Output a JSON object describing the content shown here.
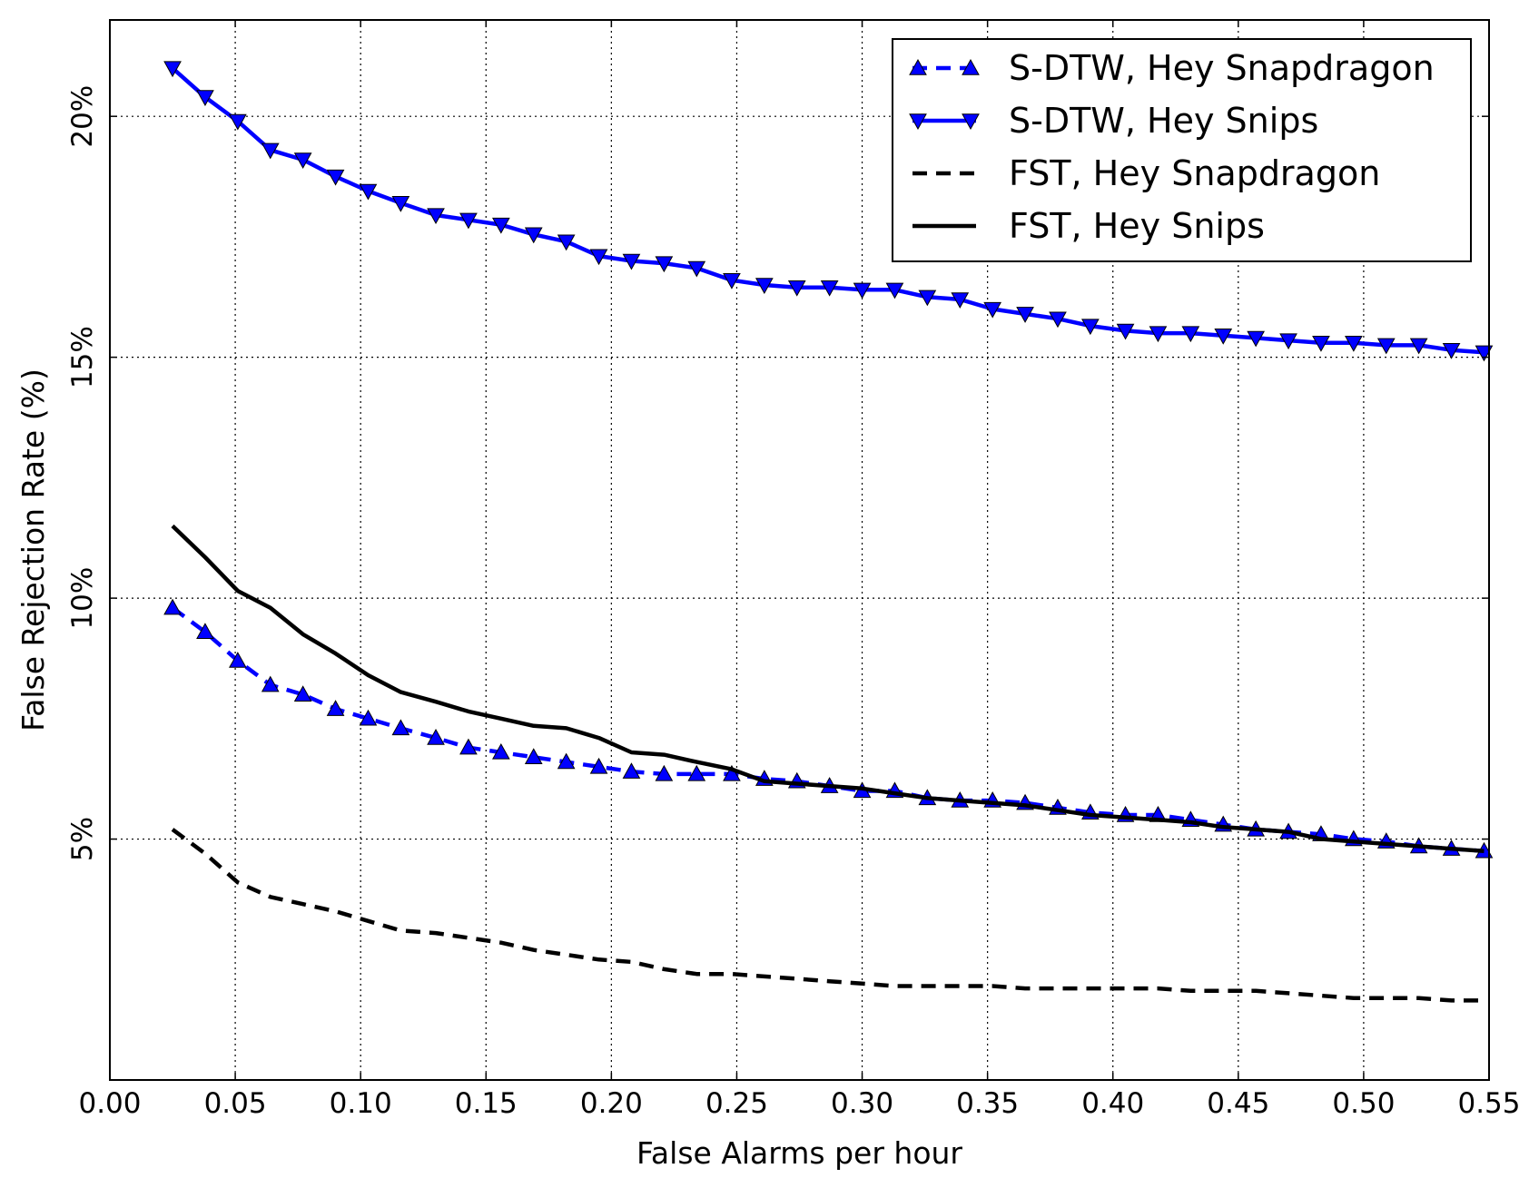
{
  "chart_data": {
    "type": "line",
    "title": "",
    "xlabel": "False Alarms per hour",
    "ylabel": "False Rejection Rate (%)",
    "xlim": [
      0.0,
      0.55
    ],
    "ylim": [
      0,
      22
    ],
    "xticks": [
      0.0,
      0.05,
      0.1,
      0.15,
      0.2,
      0.25,
      0.3,
      0.35,
      0.4,
      0.45,
      0.5,
      0.55
    ],
    "xtick_labels": [
      "0.00",
      "0.05",
      "0.10",
      "0.15",
      "0.20",
      "0.25",
      "0.30",
      "0.35",
      "0.40",
      "0.45",
      "0.50",
      "0.55"
    ],
    "yticks": [
      5,
      10,
      15,
      20
    ],
    "ytick_labels": [
      "5%",
      "10%",
      "15%",
      "20%"
    ],
    "grid": true,
    "legend_position": "top-right",
    "series": [
      {
        "name": "S-DTW, Hey Snapdragon",
        "color": "#0000ff",
        "style": "dashed",
        "marker": "triangle-up",
        "x": [
          0.025,
          0.038,
          0.051,
          0.064,
          0.077,
          0.09,
          0.103,
          0.116,
          0.13,
          0.143,
          0.156,
          0.169,
          0.182,
          0.195,
          0.208,
          0.221,
          0.234,
          0.248,
          0.261,
          0.274,
          0.287,
          0.3,
          0.313,
          0.326,
          0.339,
          0.352,
          0.365,
          0.378,
          0.391,
          0.405,
          0.418,
          0.431,
          0.444,
          0.457,
          0.47,
          0.483,
          0.496,
          0.509,
          0.522,
          0.535,
          0.548
        ],
        "y": [
          9.8,
          9.3,
          8.7,
          8.2,
          8.0,
          7.7,
          7.5,
          7.3,
          7.1,
          6.9,
          6.8,
          6.7,
          6.6,
          6.5,
          6.4,
          6.35,
          6.35,
          6.35,
          6.25,
          6.2,
          6.1,
          6.0,
          6.0,
          5.85,
          5.8,
          5.8,
          5.75,
          5.65,
          5.55,
          5.5,
          5.5,
          5.4,
          5.3,
          5.2,
          5.15,
          5.1,
          5.0,
          4.95,
          4.85,
          4.8,
          4.75
        ]
      },
      {
        "name": "S-DTW, Hey Snips",
        "color": "#0000ff",
        "style": "solid",
        "marker": "triangle-down",
        "x": [
          0.025,
          0.038,
          0.051,
          0.064,
          0.077,
          0.09,
          0.103,
          0.116,
          0.13,
          0.143,
          0.156,
          0.169,
          0.182,
          0.195,
          0.208,
          0.221,
          0.234,
          0.248,
          0.261,
          0.274,
          0.287,
          0.3,
          0.313,
          0.326,
          0.339,
          0.352,
          0.365,
          0.378,
          0.391,
          0.405,
          0.418,
          0.431,
          0.444,
          0.457,
          0.47,
          0.483,
          0.496,
          0.509,
          0.522,
          0.535,
          0.548
        ],
        "y": [
          21.0,
          20.4,
          19.9,
          19.3,
          19.1,
          18.75,
          18.45,
          18.2,
          17.95,
          17.85,
          17.75,
          17.55,
          17.4,
          17.1,
          17.0,
          16.95,
          16.85,
          16.6,
          16.5,
          16.45,
          16.45,
          16.4,
          16.4,
          16.25,
          16.2,
          16.0,
          15.9,
          15.8,
          15.65,
          15.55,
          15.5,
          15.5,
          15.45,
          15.4,
          15.35,
          15.3,
          15.3,
          15.25,
          15.25,
          15.15,
          15.1
        ]
      },
      {
        "name": "FST, Hey Snapdragon",
        "color": "#000000",
        "style": "dashed",
        "marker": "none",
        "x": [
          0.025,
          0.038,
          0.051,
          0.064,
          0.077,
          0.09,
          0.103,
          0.116,
          0.13,
          0.143,
          0.156,
          0.169,
          0.182,
          0.195,
          0.208,
          0.221,
          0.234,
          0.248,
          0.261,
          0.274,
          0.287,
          0.3,
          0.313,
          0.326,
          0.339,
          0.352,
          0.365,
          0.378,
          0.391,
          0.405,
          0.418,
          0.431,
          0.444,
          0.457,
          0.47,
          0.483,
          0.496,
          0.509,
          0.522,
          0.535,
          0.548
        ],
        "y": [
          5.2,
          4.7,
          4.1,
          3.8,
          3.65,
          3.5,
          3.3,
          3.1,
          3.05,
          2.95,
          2.85,
          2.7,
          2.6,
          2.5,
          2.45,
          2.3,
          2.2,
          2.2,
          2.15,
          2.1,
          2.05,
          2.0,
          1.95,
          1.95,
          1.95,
          1.95,
          1.9,
          1.9,
          1.9,
          1.9,
          1.9,
          1.85,
          1.85,
          1.85,
          1.8,
          1.75,
          1.7,
          1.7,
          1.7,
          1.65,
          1.65
        ]
      },
      {
        "name": "FST, Hey Snips",
        "color": "#000000",
        "style": "solid",
        "marker": "none",
        "x": [
          0.025,
          0.038,
          0.051,
          0.064,
          0.077,
          0.09,
          0.103,
          0.116,
          0.13,
          0.143,
          0.156,
          0.169,
          0.182,
          0.195,
          0.208,
          0.221,
          0.234,
          0.248,
          0.261,
          0.274,
          0.287,
          0.3,
          0.313,
          0.326,
          0.339,
          0.352,
          0.365,
          0.378,
          0.391,
          0.405,
          0.418,
          0.431,
          0.444,
          0.457,
          0.47,
          0.483,
          0.496,
          0.509,
          0.522,
          0.535,
          0.548
        ],
        "y": [
          11.5,
          10.85,
          10.15,
          9.8,
          9.25,
          8.85,
          8.4,
          8.05,
          7.85,
          7.65,
          7.5,
          7.35,
          7.3,
          7.1,
          6.8,
          6.75,
          6.6,
          6.45,
          6.2,
          6.15,
          6.1,
          6.05,
          5.95,
          5.85,
          5.8,
          5.75,
          5.7,
          5.6,
          5.5,
          5.45,
          5.4,
          5.35,
          5.25,
          5.2,
          5.15,
          5.0,
          4.95,
          4.9,
          4.85,
          4.8,
          4.75
        ]
      }
    ]
  }
}
